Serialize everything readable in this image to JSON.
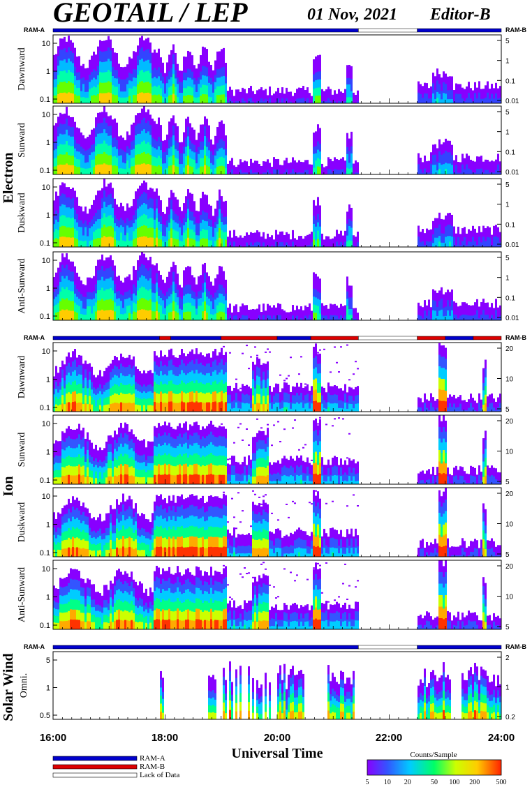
{
  "header": {
    "title": "GEOTAIL / LEP",
    "date": "01 Nov, 2021",
    "editor": "Editor-B"
  },
  "mode_labels": {
    "left": "RAM-A",
    "right": "RAM-B"
  },
  "groups": [
    {
      "label": "Electron",
      "panels": [
        {
          "name": "Dawnward",
          "left_ticks": [
            "10",
            "1",
            "0.1"
          ],
          "right_ticks": [
            "5",
            "1",
            "0.1",
            "0.01"
          ]
        },
        {
          "name": "Sunward",
          "left_ticks": [
            "10",
            "1",
            "0.1"
          ],
          "right_ticks": [
            "5",
            "1",
            "0.1",
            "0.01"
          ]
        },
        {
          "name": "Duskward",
          "left_ticks": [
            "10",
            "1",
            "0.1"
          ],
          "right_ticks": [
            "5",
            "1",
            "0.1",
            "0.01"
          ]
        },
        {
          "name": "Anti-Sunward",
          "left_ticks": [
            "10",
            "1",
            "0.1"
          ],
          "right_ticks": [
            "5",
            "1",
            "0.1",
            "0.01"
          ]
        }
      ]
    },
    {
      "label": "Ion",
      "panels": [
        {
          "name": "Dawnward",
          "left_ticks": [
            "10",
            "1",
            "0.1"
          ],
          "right_ticks": [
            "20",
            "10",
            "5"
          ]
        },
        {
          "name": "Sunward",
          "left_ticks": [
            "10",
            "1",
            "0.1"
          ],
          "right_ticks": [
            "20",
            "10",
            "5"
          ]
        },
        {
          "name": "Duskward",
          "left_ticks": [
            "10",
            "1",
            "0.1"
          ],
          "right_ticks": [
            "20",
            "10",
            "5"
          ]
        },
        {
          "name": "Anti-Sunward",
          "left_ticks": [
            "10",
            "1",
            "0.1"
          ],
          "right_ticks": [
            "20",
            "10",
            "5"
          ]
        }
      ]
    },
    {
      "label": "Solar Wind",
      "panels": [
        {
          "name": "Omni.",
          "left_ticks": [
            "5",
            "1",
            "0.5"
          ],
          "right_ticks": [
            "2",
            "1",
            "0.2"
          ]
        }
      ]
    }
  ],
  "chart_data": {
    "type": "heatmap",
    "xlabel": "Universal Time",
    "x_ticks": [
      "16:00",
      "18:00",
      "20:00",
      "22:00",
      "24:00"
    ],
    "x_range_hours": [
      16,
      24
    ],
    "data_gap_hours": [
      21.45,
      22.5
    ],
    "mode_bar": {
      "electron": [
        {
          "start": 16,
          "end": 21.45,
          "mode": "RAM-A"
        },
        {
          "start": 21.45,
          "end": 22.5,
          "mode": "Lack of Data"
        },
        {
          "start": 22.5,
          "end": 24,
          "mode": "RAM-A"
        }
      ],
      "ion": [
        {
          "start": 16,
          "end": 17.9,
          "mode": "RAM-A"
        },
        {
          "start": 17.9,
          "end": 18.1,
          "mode": "RAM-B"
        },
        {
          "start": 18.1,
          "end": 19.0,
          "mode": "RAM-A"
        },
        {
          "start": 19.0,
          "end": 20.0,
          "mode": "RAM-B"
        },
        {
          "start": 20.0,
          "end": 20.6,
          "mode": "RAM-A"
        },
        {
          "start": 20.6,
          "end": 21.45,
          "mode": "RAM-B"
        },
        {
          "start": 21.45,
          "end": 22.5,
          "mode": "Lack of Data"
        },
        {
          "start": 22.5,
          "end": 23.0,
          "mode": "RAM-B"
        },
        {
          "start": 23.0,
          "end": 23.5,
          "mode": "RAM-A"
        },
        {
          "start": 23.5,
          "end": 24,
          "mode": "RAM-B"
        }
      ],
      "solar_wind": [
        {
          "start": 16,
          "end": 21.45,
          "mode": "RAM-A"
        },
        {
          "start": 21.45,
          "end": 22.5,
          "mode": "Lack of Data"
        },
        {
          "start": 22.5,
          "end": 24,
          "mode": "RAM-A"
        }
      ]
    },
    "legend": [
      {
        "label": "RAM-A",
        "color": "#0000cc"
      },
      {
        "label": "RAM-B",
        "color": "#dd0000"
      },
      {
        "label": "Lack of Data",
        "color": "#ffffff"
      }
    ],
    "colorbar": {
      "title": "Counts/Sample",
      "ticks": [
        "5",
        "10",
        "20",
        "50",
        "100",
        "200",
        "500"
      ],
      "colors": [
        "#8800ff",
        "#3355ff",
        "#00ccff",
        "#00ff66",
        "#ccff00",
        "#ffcc00",
        "#ff3300"
      ]
    }
  }
}
